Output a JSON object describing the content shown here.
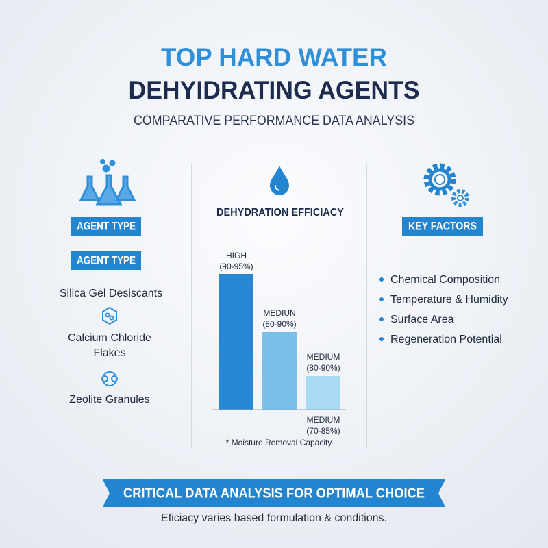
{
  "header": {
    "title_line1": "TOP HARD WATER",
    "title_line2": "DEHYIDRATING AGENTS",
    "subtitle": "COMPARATIVE PERFORMANCE DATA ANALYSIS"
  },
  "left_column": {
    "badges": [
      "AGENT TYPE",
      "AGENT TYPE"
    ],
    "agents": [
      {
        "lines": [
          "Silica Gel Desiscants"
        ]
      },
      {
        "lines": [
          "Calcium Chloride",
          "Flakes"
        ]
      },
      {
        "lines": [
          "Zeolite Granules"
        ]
      }
    ]
  },
  "middle_column": {
    "title": "DEHYDRATION EFFICIACY",
    "bars": [
      {
        "level": "HIGH",
        "range": "(90-95%)"
      },
      {
        "level": "MEDIUN",
        "range": "(80-90%)"
      },
      {
        "level": "MEDIUM",
        "range": "(80-90%)"
      }
    ],
    "extra_label": {
      "level": "MEDIUM",
      "range": "(70-85%)"
    },
    "note": "* Moisture Removal Capacity"
  },
  "right_column": {
    "badge": "KEY FACTORS",
    "factors": [
      "Chemical Composition",
      "Temperature & Humidity",
      "Surface Area",
      "Regeneration Potential"
    ]
  },
  "footer": {
    "banner": "CRITICAL DATA ANALYSIS FOR OPTIMAL CHOICE",
    "note": "Eficiacy varies based formulation & conditions."
  }
}
